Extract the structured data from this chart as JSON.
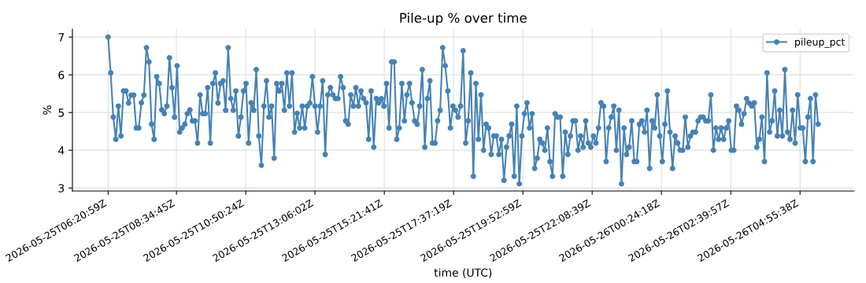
{
  "chart_data": {
    "type": "line",
    "title": "Pile-up % over time",
    "xlabel": "time (UTC)",
    "ylabel": "%",
    "x": [
      "2026-05-25T06:21",
      "2026-05-25T06:26",
      "2026-05-25T06:31",
      "2026-05-25T06:36",
      "2026-05-25T06:41",
      "2026-05-25T06:46",
      "2026-05-25T06:51",
      "2026-05-25T06:56",
      "2026-05-25T07:01",
      "2026-05-25T07:06",
      "2026-05-25T07:11",
      "2026-05-25T07:16",
      "2026-05-25T07:21",
      "2026-05-25T07:26",
      "2026-05-25T07:31",
      "2026-05-25T07:36",
      "2026-05-25T07:41",
      "2026-05-25T07:46",
      "2026-05-25T07:51",
      "2026-05-25T07:56",
      "2026-05-25T08:01",
      "2026-05-25T08:06",
      "2026-05-25T08:11",
      "2026-05-25T08:16",
      "2026-05-25T08:21",
      "2026-05-25T08:26",
      "2026-05-25T08:31",
      "2026-05-25T08:36",
      "2026-05-25T08:41",
      "2026-05-25T08:46",
      "2026-05-25T08:51",
      "2026-05-25T08:56",
      "2026-05-25T09:01",
      "2026-05-25T09:06",
      "2026-05-25T09:11",
      "2026-05-25T09:16",
      "2026-05-25T09:21",
      "2026-05-25T09:26",
      "2026-05-25T09:31",
      "2026-05-25T09:36",
      "2026-05-25T09:41",
      "2026-05-25T09:46",
      "2026-05-25T09:51",
      "2026-05-25T09:56",
      "2026-05-25T10:01",
      "2026-05-25T10:06",
      "2026-05-25T10:11",
      "2026-05-25T10:16",
      "2026-05-25T10:21",
      "2026-05-25T10:26",
      "2026-05-25T10:31",
      "2026-05-25T10:36",
      "2026-05-25T10:41",
      "2026-05-25T10:46",
      "2026-05-25T10:51",
      "2026-05-25T10:56",
      "2026-05-25T11:01",
      "2026-05-25T11:06",
      "2026-05-25T11:11",
      "2026-05-25T11:16",
      "2026-05-25T11:21",
      "2026-05-25T11:26",
      "2026-05-25T11:31",
      "2026-05-25T11:36",
      "2026-05-25T11:41",
      "2026-05-25T11:46",
      "2026-05-25T11:51",
      "2026-05-25T11:56",
      "2026-05-25T12:01",
      "2026-05-25T12:06",
      "2026-05-25T12:11",
      "2026-05-25T12:16",
      "2026-05-25T12:21",
      "2026-05-25T12:26",
      "2026-05-25T12:31",
      "2026-05-25T12:36",
      "2026-05-25T12:41",
      "2026-05-25T12:46",
      "2026-05-25T12:51",
      "2026-05-25T12:56",
      "2026-05-25T13:01",
      "2026-05-25T13:06",
      "2026-05-25T13:11",
      "2026-05-25T13:16",
      "2026-05-25T13:21",
      "2026-05-25T13:26",
      "2026-05-25T13:31",
      "2026-05-25T13:36",
      "2026-05-25T13:41",
      "2026-05-25T13:46",
      "2026-05-25T13:51",
      "2026-05-25T13:56",
      "2026-05-25T14:01",
      "2026-05-25T14:06",
      "2026-05-25T14:11",
      "2026-05-25T14:16",
      "2026-05-25T14:21",
      "2026-05-25T14:26",
      "2026-05-25T14:31",
      "2026-05-25T14:36",
      "2026-05-25T14:41",
      "2026-05-25T14:46",
      "2026-05-25T14:51",
      "2026-05-25T14:56",
      "2026-05-25T15:01",
      "2026-05-25T15:06",
      "2026-05-25T15:11",
      "2026-05-25T15:16",
      "2026-05-25T15:21",
      "2026-05-25T15:26",
      "2026-05-25T15:31",
      "2026-05-25T15:36",
      "2026-05-25T15:41",
      "2026-05-25T15:46",
      "2026-05-25T15:51",
      "2026-05-25T15:56",
      "2026-05-25T16:01",
      "2026-05-25T16:06",
      "2026-05-25T16:11",
      "2026-05-25T16:16",
      "2026-05-25T16:21",
      "2026-05-25T16:26",
      "2026-05-25T16:31",
      "2026-05-25T16:36",
      "2026-05-25T16:41",
      "2026-05-25T16:46",
      "2026-05-25T16:51",
      "2026-05-25T16:56",
      "2026-05-25T17:01",
      "2026-05-25T17:06",
      "2026-05-25T17:11",
      "2026-05-25T17:16",
      "2026-05-25T17:21",
      "2026-05-25T17:26",
      "2026-05-25T17:31",
      "2026-05-25T17:36",
      "2026-05-25T17:41",
      "2026-05-25T17:46",
      "2026-05-25T17:51",
      "2026-05-25T17:56",
      "2026-05-25T18:01",
      "2026-05-25T18:06",
      "2026-05-25T18:11",
      "2026-05-25T18:16",
      "2026-05-25T18:21",
      "2026-05-25T18:26",
      "2026-05-25T18:31",
      "2026-05-25T18:36",
      "2026-05-25T18:41",
      "2026-05-25T18:46",
      "2026-05-25T18:51",
      "2026-05-25T18:56",
      "2026-05-25T19:01",
      "2026-05-25T19:06",
      "2026-05-25T19:11",
      "2026-05-25T19:16",
      "2026-05-25T19:21",
      "2026-05-25T19:26",
      "2026-05-25T19:31",
      "2026-05-25T19:36",
      "2026-05-25T19:41",
      "2026-05-25T19:46",
      "2026-05-25T19:51",
      "2026-05-25T19:56",
      "2026-05-25T20:01",
      "2026-05-25T20:06",
      "2026-05-25T20:11",
      "2026-05-25T20:16",
      "2026-05-25T20:21",
      "2026-05-25T20:26",
      "2026-05-25T20:31",
      "2026-05-25T20:36",
      "2026-05-25T20:41",
      "2026-05-25T20:46",
      "2026-05-25T20:51",
      "2026-05-25T20:56",
      "2026-05-25T21:01",
      "2026-05-25T21:06",
      "2026-05-25T21:11",
      "2026-05-25T21:16",
      "2026-05-25T21:21",
      "2026-05-25T21:26",
      "2026-05-25T21:31",
      "2026-05-25T21:36",
      "2026-05-25T21:41",
      "2026-05-25T21:46",
      "2026-05-25T21:51",
      "2026-05-25T21:56",
      "2026-05-25T22:01",
      "2026-05-25T22:06",
      "2026-05-25T22:11",
      "2026-05-25T22:16",
      "2026-05-25T22:21",
      "2026-05-25T22:26",
      "2026-05-25T22:31",
      "2026-05-25T22:36",
      "2026-05-25T22:41",
      "2026-05-25T22:46",
      "2026-05-25T22:51",
      "2026-05-25T22:56",
      "2026-05-25T23:01",
      "2026-05-25T23:06",
      "2026-05-25T23:11",
      "2026-05-25T23:16",
      "2026-05-25T23:21",
      "2026-05-25T23:26",
      "2026-05-25T23:31",
      "2026-05-25T23:36",
      "2026-05-25T23:41",
      "2026-05-25T23:46",
      "2026-05-25T23:51",
      "2026-05-25T23:56",
      "2026-05-26T00:01",
      "2026-05-26T00:06",
      "2026-05-26T00:11",
      "2026-05-26T00:16",
      "2026-05-26T00:21",
      "2026-05-26T00:26",
      "2026-05-26T00:31",
      "2026-05-26T00:36",
      "2026-05-26T00:41",
      "2026-05-26T00:46",
      "2026-05-26T00:51",
      "2026-05-26T00:56",
      "2026-05-26T01:01",
      "2026-05-26T01:06",
      "2026-05-26T01:11",
      "2026-05-26T01:16",
      "2026-05-26T01:21",
      "2026-05-26T01:26",
      "2026-05-26T01:31",
      "2026-05-26T01:36",
      "2026-05-26T01:41",
      "2026-05-26T01:46",
      "2026-05-26T01:51",
      "2026-05-26T01:56",
      "2026-05-26T02:01",
      "2026-05-26T02:06",
      "2026-05-26T02:11",
      "2026-05-26T02:16",
      "2026-05-26T02:21",
      "2026-05-26T02:26",
      "2026-05-26T02:31",
      "2026-05-26T02:36",
      "2026-05-26T02:41",
      "2026-05-26T02:46",
      "2026-05-26T02:51",
      "2026-05-26T02:56",
      "2026-05-26T03:01",
      "2026-05-26T03:06",
      "2026-05-26T03:11",
      "2026-05-26T03:16",
      "2026-05-26T03:21",
      "2026-05-26T03:26",
      "2026-05-26T03:31",
      "2026-05-26T03:36",
      "2026-05-26T03:41",
      "2026-05-26T03:46",
      "2026-05-26T03:51",
      "2026-05-26T03:56",
      "2026-05-26T04:01",
      "2026-05-26T04:06",
      "2026-05-26T04:11",
      "2026-05-26T04:16",
      "2026-05-26T04:21",
      "2026-05-26T04:26",
      "2026-05-26T04:31",
      "2026-05-26T04:36",
      "2026-05-26T04:41",
      "2026-05-26T04:46",
      "2026-05-26T04:51",
      "2026-05-26T04:56",
      "2026-05-26T05:01",
      "2026-05-26T05:06",
      "2026-05-26T05:11",
      "2026-05-26T05:16",
      "2026-05-26T05:21",
      "2026-05-26T05:26",
      "2026-05-26T05:31"
    ],
    "series": [
      {
        "name": "pileup_pct",
        "color": "#4682b4",
        "values": [
          7.0,
          6.05,
          4.88,
          4.29,
          5.17,
          4.38,
          5.57,
          5.57,
          5.25,
          5.46,
          5.46,
          4.59,
          4.59,
          5.26,
          5.46,
          6.72,
          6.34,
          4.69,
          4.29,
          5.95,
          5.77,
          5.07,
          4.97,
          5.17,
          6.45,
          5.66,
          4.88,
          6.24,
          4.48,
          4.59,
          4.69,
          4.97,
          5.07,
          4.78,
          4.78,
          4.19,
          5.47,
          4.97,
          4.97,
          5.66,
          4.19,
          5.77,
          6.05,
          5.25,
          5.77,
          5.84,
          5.06,
          6.72,
          5.37,
          5.06,
          5.57,
          4.38,
          4.88,
          5.57,
          5.77,
          4.19,
          5.26,
          5.06,
          6.14,
          4.38,
          3.6,
          5.17,
          5.84,
          4.88,
          5.17,
          3.79,
          5.77,
          5.57,
          5.77,
          5.06,
          6.05,
          5.17,
          6.05,
          4.48,
          4.98,
          4.59,
          5.17,
          4.59,
          5.17,
          5.25,
          5.95,
          5.17,
          4.48,
          5.17,
          5.84,
          3.89,
          5.47,
          5.66,
          5.47,
          5.37,
          5.37,
          5.95,
          5.66,
          4.78,
          4.69,
          5.47,
          5.17,
          5.66,
          5.17,
          5.57,
          5.37,
          5.26,
          4.29,
          5.57,
          4.08,
          5.37,
          5.26,
          5.37,
          5.17,
          5.77,
          4.59,
          6.34,
          6.34,
          4.29,
          4.59,
          5.77,
          4.78,
          5.47,
          5.77,
          5.26,
          4.78,
          4.69,
          5.17,
          6.14,
          4.08,
          5.37,
          5.84,
          4.19,
          4.19,
          4.78,
          5.06,
          6.72,
          6.24,
          5.57,
          4.59,
          5.17,
          5.06,
          4.88,
          5.17,
          6.64,
          4.19,
          4.78,
          6.05,
          3.31,
          5.77,
          4.29,
          5.47,
          4.0,
          4.69,
          4.59,
          3.89,
          4.38,
          4.38,
          3.89,
          4.29,
          3.2,
          4.08,
          4.38,
          4.69,
          3.31,
          5.17,
          3.11,
          4.38,
          4.97,
          5.26,
          4.59,
          4.97,
          3.52,
          3.79,
          4.29,
          4.19,
          4.0,
          4.59,
          3.7,
          3.31,
          4.97,
          4.88,
          4.88,
          3.31,
          4.48,
          3.89,
          4.38,
          4.78,
          4.78,
          4.0,
          4.38,
          4.08,
          4.78,
          4.19,
          4.08,
          4.38,
          4.19,
          4.59,
          5.26,
          5.17,
          3.7,
          4.59,
          4.88,
          5.17,
          4.0,
          5.06,
          3.11,
          4.59,
          3.89,
          4.08,
          4.78,
          3.7,
          3.7,
          4.69,
          4.78,
          4.48,
          5.06,
          3.52,
          4.78,
          4.59,
          5.47,
          4.38,
          3.7,
          4.69,
          5.57,
          4.48,
          3.52,
          4.38,
          4.19,
          4.0,
          4.0,
          4.88,
          4.08,
          4.38,
          4.48,
          4.48,
          4.78,
          4.88,
          4.88,
          4.78,
          4.78,
          5.47,
          4.0,
          4.59,
          4.29,
          4.59,
          4.29,
          4.59,
          4.78,
          4.0,
          4.0,
          5.17,
          5.06,
          4.69,
          4.97,
          5.37,
          5.25,
          5.17,
          5.26,
          4.08,
          4.29,
          4.88,
          3.7,
          6.05,
          4.48,
          4.78,
          5.57,
          4.38,
          5.06,
          4.38,
          6.14,
          4.48,
          4.29,
          5.06,
          4.19,
          5.47,
          4.59,
          4.59,
          3.7,
          4.88,
          5.37,
          3.7,
          5.47,
          4.69
        ]
      }
    ],
    "xlim": [
      "2026-05-25T05:11",
      "2026-05-26T06:41"
    ],
    "xticks": [
      {
        "value": "2026-05-25T06:20:59",
        "label": "2026-05-25T06:20:59Z"
      },
      {
        "value": "2026-05-25T08:34:45",
        "label": "2026-05-25T08:34:45Z"
      },
      {
        "value": "2026-05-25T10:50:24",
        "label": "2026-05-25T10:50:24Z"
      },
      {
        "value": "2026-05-25T13:06:02",
        "label": "2026-05-25T13:06:02Z"
      },
      {
        "value": "2026-05-25T15:21:41",
        "label": "2026-05-25T15:21:41Z"
      },
      {
        "value": "2026-05-25T17:37:19",
        "label": "2026-05-25T17:37:19Z"
      },
      {
        "value": "2026-05-25T19:52:59",
        "label": "2026-05-25T19:52:59Z"
      },
      {
        "value": "2026-05-25T22:08:39",
        "label": "2026-05-25T22:08:39Z"
      },
      {
        "value": "2026-05-26T00:24:18",
        "label": "2026-05-26T00:24:18Z"
      },
      {
        "value": "2026-05-26T02:39:57",
        "label": "2026-05-26T02:39:57Z"
      },
      {
        "value": "2026-05-26T04:55:38",
        "label": "2026-05-26T04:55:38Z"
      }
    ],
    "ylim": [
      2.92,
      7.21
    ],
    "yticks": [
      3,
      4,
      5,
      6,
      7
    ],
    "grid": true,
    "legend": "top right",
    "marker": "circle",
    "line_style": "solid"
  }
}
